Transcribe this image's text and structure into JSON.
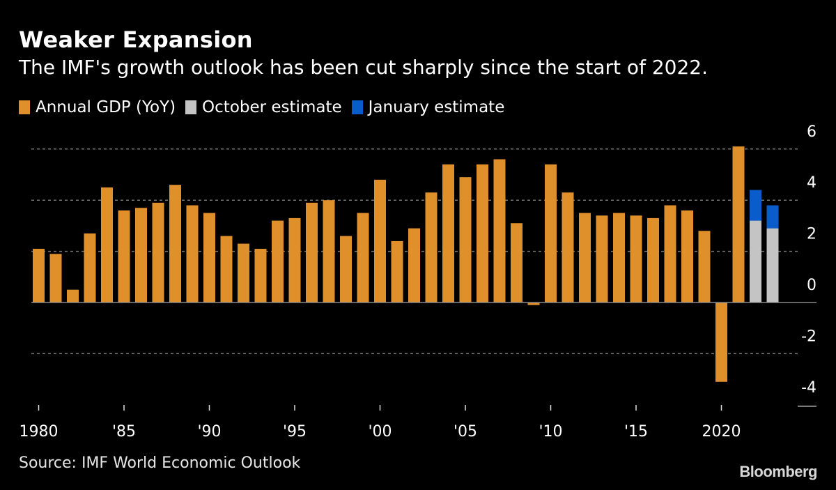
{
  "chart_data": {
    "type": "bar",
    "title": "Weaker Expansion",
    "subtitle": "The IMF's growth outlook has been cut sharply since the start of 2022.",
    "legend": [
      {
        "name": "Annual GDP (YoY)",
        "color": "#e0902b"
      },
      {
        "name": "October estimate",
        "color": "#c4c4c4"
      },
      {
        "name": "January estimate",
        "color": "#0a5ccc"
      }
    ],
    "legend_placement": "top-left",
    "years": [
      1980,
      1981,
      1982,
      1983,
      1984,
      1985,
      1986,
      1987,
      1988,
      1989,
      1990,
      1991,
      1992,
      1993,
      1994,
      1995,
      1996,
      1997,
      1998,
      1999,
      2000,
      2001,
      2002,
      2003,
      2004,
      2005,
      2006,
      2007,
      2008,
      2009,
      2010,
      2011,
      2012,
      2013,
      2014,
      2015,
      2016,
      2017,
      2018,
      2019,
      2020,
      2021
    ],
    "annual_gdp": [
      2.1,
      1.9,
      0.5,
      2.7,
      4.5,
      3.6,
      3.7,
      3.9,
      4.6,
      3.8,
      3.5,
      2.6,
      2.3,
      2.1,
      3.2,
      3.3,
      3.9,
      4.0,
      2.6,
      3.5,
      4.8,
      2.4,
      2.9,
      4.3,
      5.4,
      4.9,
      5.4,
      5.6,
      3.1,
      -0.1,
      5.4,
      4.3,
      3.5,
      3.4,
      3.5,
      3.4,
      3.3,
      3.8,
      3.6,
      2.8,
      -3.1,
      6.1
    ],
    "estimates": [
      {
        "year": 2022,
        "october": 3.2,
        "january": 4.4
      },
      {
        "year": 2023,
        "october": 2.9,
        "january": 3.8
      }
    ],
    "x_ticks": [
      {
        "year": 1980,
        "label": "1980"
      },
      {
        "year": 1985,
        "label": "'85"
      },
      {
        "year": 1990,
        "label": "'90"
      },
      {
        "year": 1995,
        "label": "'95"
      },
      {
        "year": 2000,
        "label": "'00"
      },
      {
        "year": 2005,
        "label": "'05"
      },
      {
        "year": 2010,
        "label": "'10"
      },
      {
        "year": 2015,
        "label": "'15"
      },
      {
        "year": 2020,
        "label": "2020"
      }
    ],
    "y_ticks": [
      6,
      4,
      2,
      0,
      -2,
      -4
    ],
    "ylim": [
      -4,
      6
    ],
    "grid": "dotted horizontal",
    "source": "Source: IMF World Economic Outlook",
    "logo": "Bloomberg"
  }
}
